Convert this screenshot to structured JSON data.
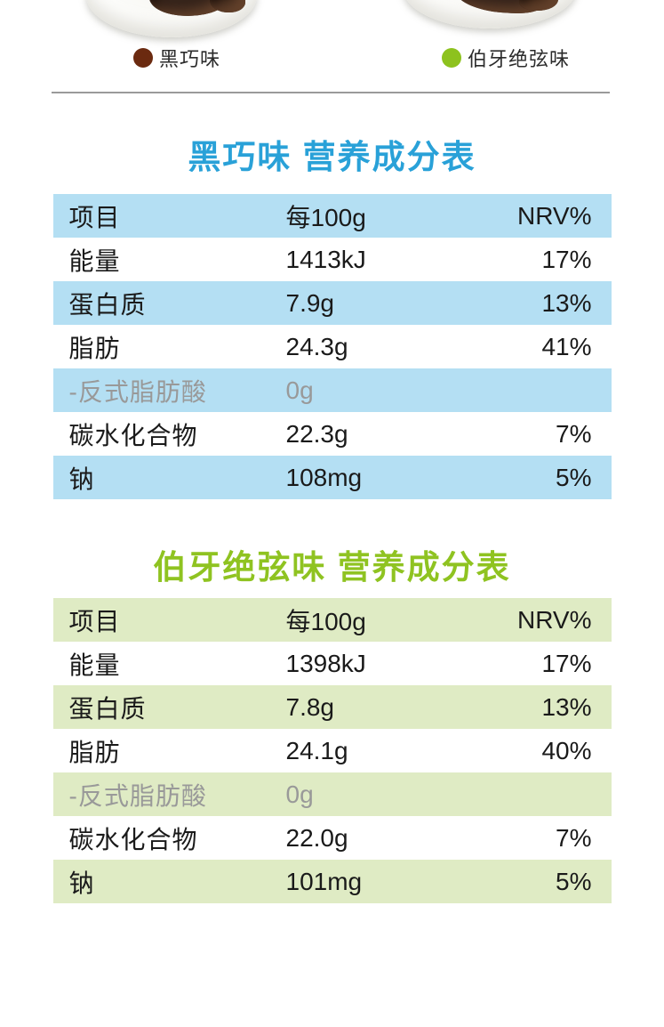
{
  "legend": {
    "items": [
      {
        "label": "黑巧味",
        "dot_color": "#6b2a10"
      },
      {
        "label": "伯牙绝弦味",
        "dot_color": "#8dc21e"
      }
    ]
  },
  "colors": {
    "table1_accent": "#29a1d8",
    "table1_row_bg": "#b4dff3",
    "table2_accent": "#8fc321",
    "table2_row_bg": "#dfebc4",
    "muted_text": "#999999",
    "divider": "#9a9a9a"
  },
  "tables": [
    {
      "title": "黑巧味 营养成分表",
      "columns": [
        "项目",
        "每100g",
        "NRV%"
      ],
      "rows": [
        {
          "item": "能量",
          "per100g": "1413kJ",
          "nrv": "17%"
        },
        {
          "item": "蛋白质",
          "per100g": "7.9g",
          "nrv": "13%"
        },
        {
          "item": "脂肪",
          "per100g": "24.3g",
          "nrv": "41%"
        },
        {
          "item": "-反式脂肪酸",
          "per100g": "0g",
          "nrv": ""
        },
        {
          "item": "碳水化合物",
          "per100g": "22.3g",
          "nrv": "7%"
        },
        {
          "item": "钠",
          "per100g": "108mg",
          "nrv": "5%"
        }
      ]
    },
    {
      "title": "伯牙绝弦味 营养成分表",
      "columns": [
        "项目",
        "每100g",
        "NRV%"
      ],
      "rows": [
        {
          "item": "能量",
          "per100g": "1398kJ",
          "nrv": "17%"
        },
        {
          "item": "蛋白质",
          "per100g": "7.8g",
          "nrv": "13%"
        },
        {
          "item": "脂肪",
          "per100g": "24.1g",
          "nrv": "40%"
        },
        {
          "item": "-反式脂肪酸",
          "per100g": "0g",
          "nrv": ""
        },
        {
          "item": "碳水化合物",
          "per100g": "22.0g",
          "nrv": "7%"
        },
        {
          "item": "钠",
          "per100g": "101mg",
          "nrv": "5%"
        }
      ]
    }
  ]
}
